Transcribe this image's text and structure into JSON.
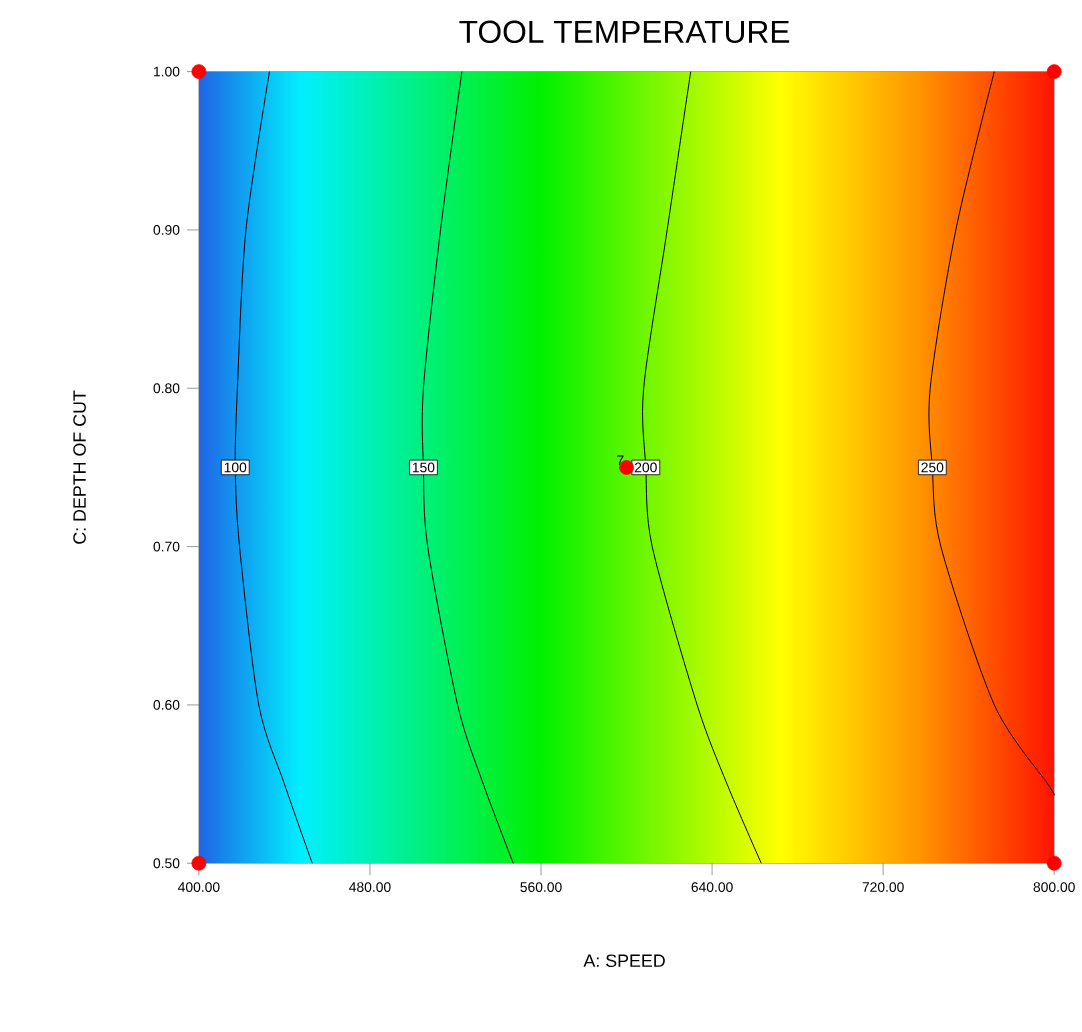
{
  "chart_data": {
    "type": "line",
    "title": "TOOL TEMPERATURE",
    "xlabel": "A: SPEED",
    "ylabel": "C: DEPTH OF CUT",
    "xlim": [
      400,
      800
    ],
    "ylim": [
      0.5,
      1.0
    ],
    "xticks": [
      {
        "value": 400,
        "label": "400.00"
      },
      {
        "value": 480,
        "label": "480.00"
      },
      {
        "value": 560,
        "label": "560.00"
      },
      {
        "value": 640,
        "label": "640.00"
      },
      {
        "value": 720,
        "label": "720.00"
      },
      {
        "value": 800,
        "label": "800.00"
      }
    ],
    "yticks": [
      {
        "value": 0.5,
        "label": "0.50"
      },
      {
        "value": 0.6,
        "label": "0.60"
      },
      {
        "value": 0.7,
        "label": "0.70"
      },
      {
        "value": 0.8,
        "label": "0.80"
      },
      {
        "value": 0.9,
        "label": "0.90"
      },
      {
        "value": 1.0,
        "label": "1.00"
      }
    ],
    "grid": false,
    "legend": false,
    "line_style": "solid",
    "marker": "none",
    "series": [
      {
        "name": "100",
        "color": "#000000",
        "x": [
          433,
          422,
          418,
          417,
          419,
          428,
          440,
          453
        ],
        "values": [
          1.0,
          0.9,
          0.8,
          0.75,
          0.7,
          0.6,
          0.55,
          0.5
        ]
      },
      {
        "name": "150",
        "color": "#000000",
        "x": [
          523,
          513,
          505,
          505,
          507,
          521,
          533,
          547
        ],
        "values": [
          1.0,
          0.9,
          0.8,
          0.75,
          0.7,
          0.6,
          0.55,
          0.5
        ]
      },
      {
        "name": "200",
        "color": "#000000",
        "x": [
          630,
          619,
          608,
          609,
          612,
          633,
          647,
          663
        ],
        "values": [
          1.0,
          0.9,
          0.8,
          0.75,
          0.7,
          0.6,
          0.55,
          0.5
        ]
      },
      {
        "name": "250",
        "color": "#000000",
        "x": [
          772,
          754,
          742,
          743,
          747,
          772,
          797,
          800
        ],
        "values": [
          1.0,
          0.9,
          0.8,
          0.75,
          0.7,
          0.6,
          0.55,
          0.543
        ]
      },
      {
        "type": "scatter",
        "marker": "circle",
        "color": "#ff0000",
        "x": [
          400,
          800,
          400,
          800,
          600
        ],
        "values": [
          1.0,
          1.0,
          0.5,
          0.5,
          0.75
        ]
      }
    ],
    "annotations": [
      {
        "text": "7",
        "x": 600,
        "y": 0.75
      }
    ]
  }
}
